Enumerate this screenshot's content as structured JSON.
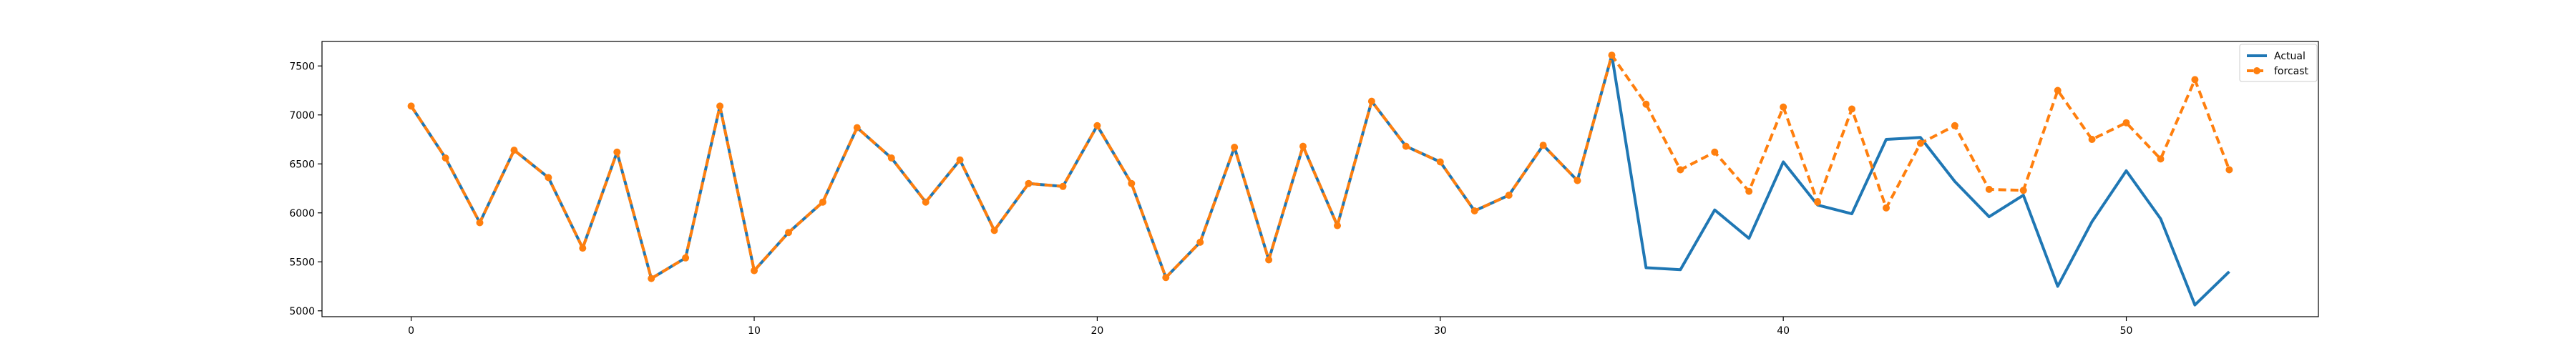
{
  "chart_data": {
    "type": "line",
    "x": [
      0,
      1,
      2,
      3,
      4,
      5,
      6,
      7,
      8,
      9,
      10,
      11,
      12,
      13,
      14,
      15,
      16,
      17,
      18,
      19,
      20,
      21,
      22,
      23,
      24,
      25,
      26,
      27,
      28,
      29,
      30,
      31,
      32,
      33,
      34,
      35,
      36,
      37,
      38,
      39,
      40,
      41,
      42,
      43,
      44,
      45,
      46,
      47,
      48,
      49,
      50,
      51,
      52,
      53
    ],
    "series": [
      {
        "name": "Actual",
        "color": "#1f77b4",
        "style": "solid",
        "values": [
          7090,
          6560,
          5900,
          6640,
          6360,
          5640,
          6620,
          5330,
          5540,
          7090,
          5410,
          5800,
          6110,
          6870,
          6560,
          6110,
          6540,
          5820,
          6300,
          6270,
          6890,
          6300,
          5340,
          5700,
          6670,
          5520,
          6680,
          5870,
          7140,
          6680,
          6520,
          6020,
          6180,
          6690,
          6330,
          7610,
          5440,
          5420,
          6030,
          5740,
          6520,
          6080,
          5990,
          6750,
          6770,
          6320,
          5960,
          6180,
          5250,
          5910,
          6430,
          5940,
          5060,
          5400
        ]
      },
      {
        "name": "forcast",
        "color": "#ff7f0e",
        "style": "dashed",
        "marker": "circle",
        "values": [
          7090,
          6560,
          5900,
          6640,
          6360,
          5640,
          6620,
          5330,
          5540,
          7090,
          5410,
          5800,
          6110,
          6870,
          6560,
          6110,
          6540,
          5820,
          6300,
          6270,
          6890,
          6300,
          5340,
          5700,
          6670,
          5520,
          6680,
          5870,
          7140,
          6680,
          6520,
          6020,
          6180,
          6690,
          6330,
          7610,
          7110,
          6440,
          6620,
          6220,
          7080,
          6110,
          7060,
          6050,
          6710,
          6890,
          6240,
          6230,
          7250,
          6750,
          6920,
          6550,
          7360,
          6440
        ]
      }
    ],
    "xticks": [
      0,
      10,
      20,
      30,
      40,
      50
    ],
    "yticks": [
      5000,
      5500,
      6000,
      6500,
      7000,
      7500
    ],
    "xlim": [
      -2.6,
      55.6
    ],
    "ylim": [
      4940,
      7750
    ],
    "grid": false,
    "legend_position": "upper-right"
  }
}
